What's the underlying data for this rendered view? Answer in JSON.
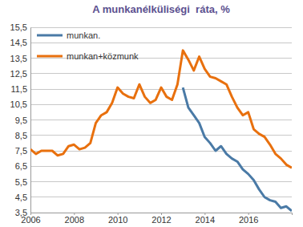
{
  "chart_data": {
    "type": "line",
    "title": "A munkanélküliségi  ráta, %",
    "x": [
      2006.0,
      2006.25,
      2006.5,
      2006.75,
      2007.0,
      2007.25,
      2007.5,
      2007.75,
      2008.0,
      2008.25,
      2008.5,
      2008.75,
      2009.0,
      2009.25,
      2009.5,
      2009.75,
      2010.0,
      2010.25,
      2010.5,
      2010.75,
      2011.0,
      2011.25,
      2011.5,
      2011.75,
      2012.0,
      2012.25,
      2012.5,
      2012.75,
      2013.0,
      2013.25,
      2013.5,
      2013.75,
      2014.0,
      2014.25,
      2014.5,
      2014.75,
      2015.0,
      2015.25,
      2015.5,
      2015.75,
      2016.0,
      2016.25,
      2016.5,
      2016.75,
      2017.0,
      2017.25,
      2017.5,
      2017.75,
      2018.0
    ],
    "series": [
      {
        "name": "munkan.",
        "color": "#4a7aa6",
        "values": [
          null,
          null,
          null,
          null,
          null,
          null,
          null,
          null,
          null,
          null,
          null,
          null,
          null,
          null,
          null,
          null,
          null,
          null,
          null,
          null,
          null,
          null,
          null,
          null,
          null,
          null,
          null,
          null,
          11.6,
          10.3,
          9.8,
          9.3,
          8.4,
          8.0,
          7.5,
          7.8,
          7.3,
          7.0,
          6.8,
          6.3,
          6.0,
          5.6,
          5.0,
          4.5,
          4.3,
          4.2,
          3.8,
          3.9,
          3.6
        ]
      },
      {
        "name": "munkan+közmunk",
        "color": "#e8700e",
        "values": [
          7.6,
          7.3,
          7.5,
          7.5,
          7.5,
          7.2,
          7.3,
          7.8,
          7.9,
          7.6,
          7.7,
          8.0,
          9.3,
          9.8,
          10.0,
          10.6,
          11.6,
          11.2,
          11.0,
          10.9,
          11.8,
          11.0,
          10.6,
          10.8,
          11.6,
          11.0,
          10.8,
          11.8,
          14.0,
          13.4,
          12.7,
          13.6,
          12.8,
          12.3,
          12.2,
          12.0,
          11.8,
          11.0,
          10.3,
          9.8,
          10.0,
          8.9,
          8.6,
          8.4,
          7.9,
          7.3,
          7.0,
          6.6,
          6.4
        ]
      }
    ],
    "xlim": [
      2006,
      2018
    ],
    "xticks": [
      2006,
      2008,
      2010,
      2012,
      2014,
      2016
    ],
    "ylim": [
      3.5,
      15.5
    ],
    "yticks": [
      {
        "value": 3.5,
        "label": "3,5"
      },
      {
        "value": 4.5,
        "label": "4,5"
      },
      {
        "value": 5.5,
        "label": "5,5"
      },
      {
        "value": 6.5,
        "label": "6,5"
      },
      {
        "value": 7.5,
        "label": "7,5"
      },
      {
        "value": 8.5,
        "label": "8,5"
      },
      {
        "value": 9.5,
        "label": "9,5"
      },
      {
        "value": 10.5,
        "label": "10,5"
      },
      {
        "value": 11.5,
        "label": "11,5"
      },
      {
        "value": 12.5,
        "label": "12,5"
      },
      {
        "value": 13.5,
        "label": "13,5"
      },
      {
        "value": 14.5,
        "label": "14,5"
      },
      {
        "value": 15.5,
        "label": "15,5"
      }
    ],
    "grid": true,
    "legend": "upper left"
  }
}
